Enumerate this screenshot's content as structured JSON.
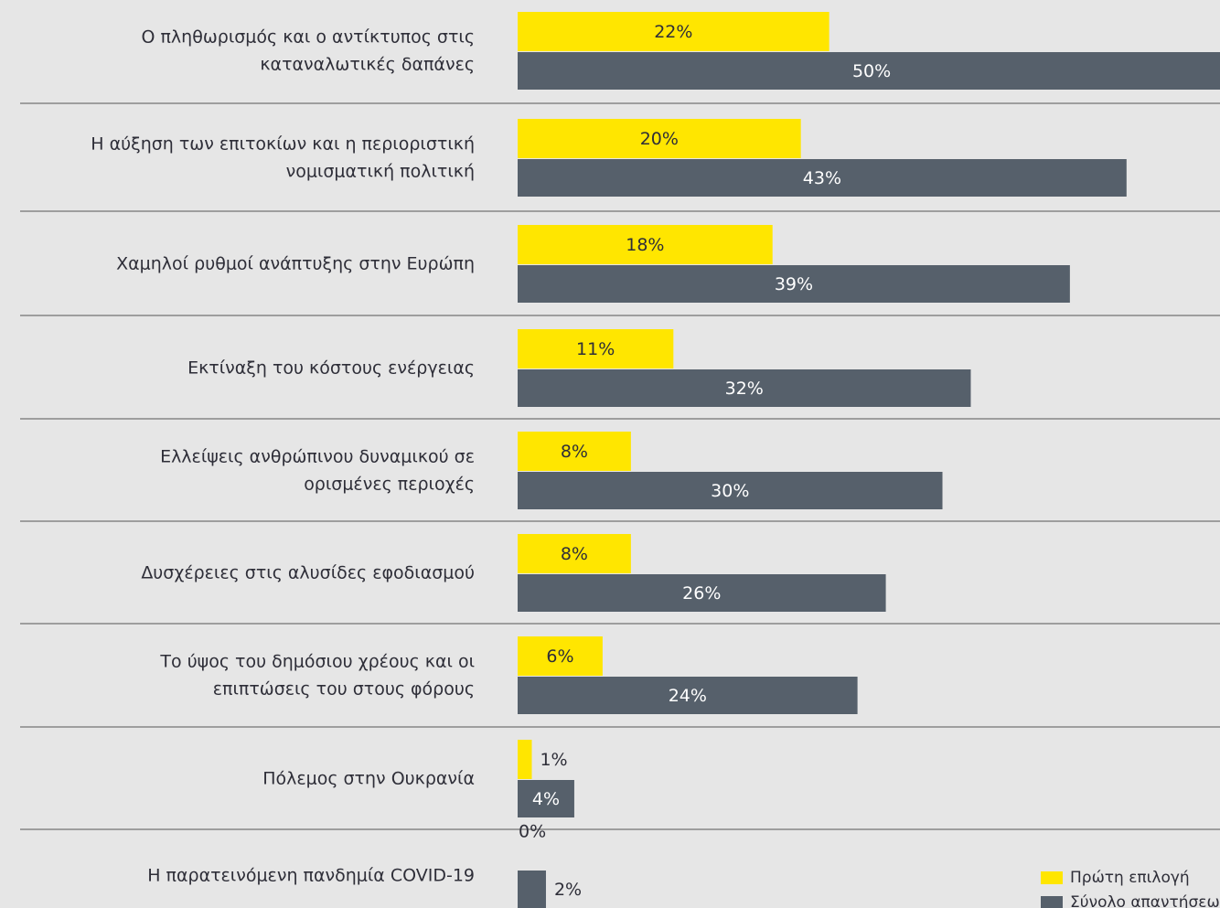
{
  "chart_data": {
    "type": "bar",
    "orientation": "horizontal",
    "categories": [
      [
        "Ο πληθωρισμός και ο αντίκτυπος στις",
        "καταναλωτικές δαπάνες"
      ],
      [
        "Η αύξηση των επιτοκίων και η περιοριστική",
        "νομισματική πολιτική"
      ],
      [
        "Χαμηλοί ρυθμοί ανάπτυξης στην Ευρώπη"
      ],
      [
        "Εκτίναξη του κόστους ενέργειας"
      ],
      [
        "Ελλείψεις ανθρώπινου δυναμικού σε",
        "ορισμένες περιοχές"
      ],
      [
        "Δυσχέρειες στις αλυσίδες εφοδιασμού"
      ],
      [
        "Το ύψος του δημόσιου χρέους και οι",
        "επιπτώσεις του στους φόρους"
      ],
      [
        "Πόλεμος στην Ουκρανία"
      ],
      [
        "Η παρατεινόμενη πανδημία COVID-19"
      ]
    ],
    "series": [
      {
        "name": "Πρώτη επιλογή",
        "color": "#ffe600",
        "label_color": "#2e2e38",
        "values": [
          22,
          20,
          18,
          11,
          8,
          8,
          6,
          1,
          0
        ],
        "value_labels": [
          "22%",
          "20%",
          "18%",
          "11%",
          "8%",
          "8%",
          "6%",
          "1%",
          "0%"
        ]
      },
      {
        "name": "Σύνολο απαντήσεων",
        "color": "#56606b",
        "label_color": "#ffffff",
        "values": [
          50,
          43,
          39,
          32,
          30,
          26,
          24,
          4,
          2
        ],
        "value_labels": [
          "50%",
          "43%",
          "39%",
          "32%",
          "30%",
          "26%",
          "24%",
          "4%",
          "2%"
        ]
      }
    ],
    "xlim": [
      0,
      49.6
    ],
    "legend": "bottom-right"
  }
}
